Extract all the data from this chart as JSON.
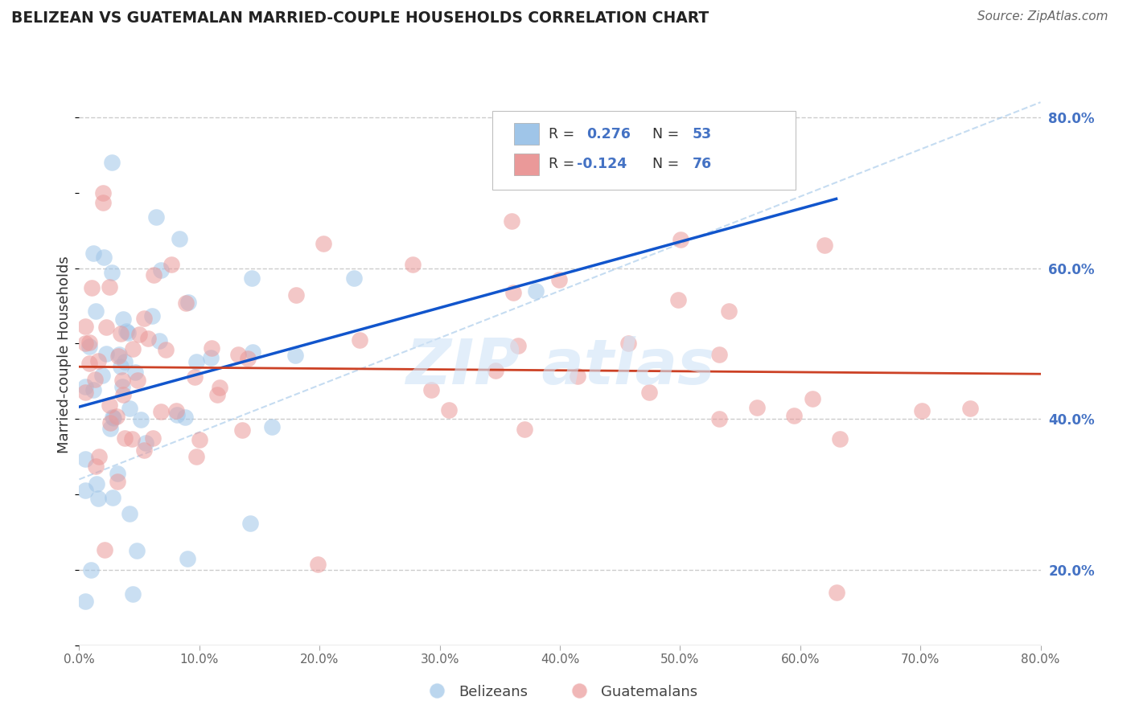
{
  "title": "BELIZEAN VS GUATEMALAN MARRIED-COUPLE HOUSEHOLDS CORRELATION CHART",
  "source": "Source: ZipAtlas.com",
  "ylabel": "Married-couple Households",
  "xlim": [
    0.0,
    0.8
  ],
  "ylim": [
    0.1,
    0.87
  ],
  "blue_color": "#9fc5e8",
  "pink_color": "#ea9999",
  "blue_line_color": "#1155cc",
  "pink_line_color": "#cc4125",
  "diagonal_color": "#9fc5e8",
  "watermark_color": "#d0e4f7",
  "R_blue": 0.276,
  "N_blue": 53,
  "R_pink": -0.124,
  "N_pink": 76,
  "background_color": "#ffffff",
  "grid_color": "#cccccc",
  "right_axis_color": "#4472c4"
}
